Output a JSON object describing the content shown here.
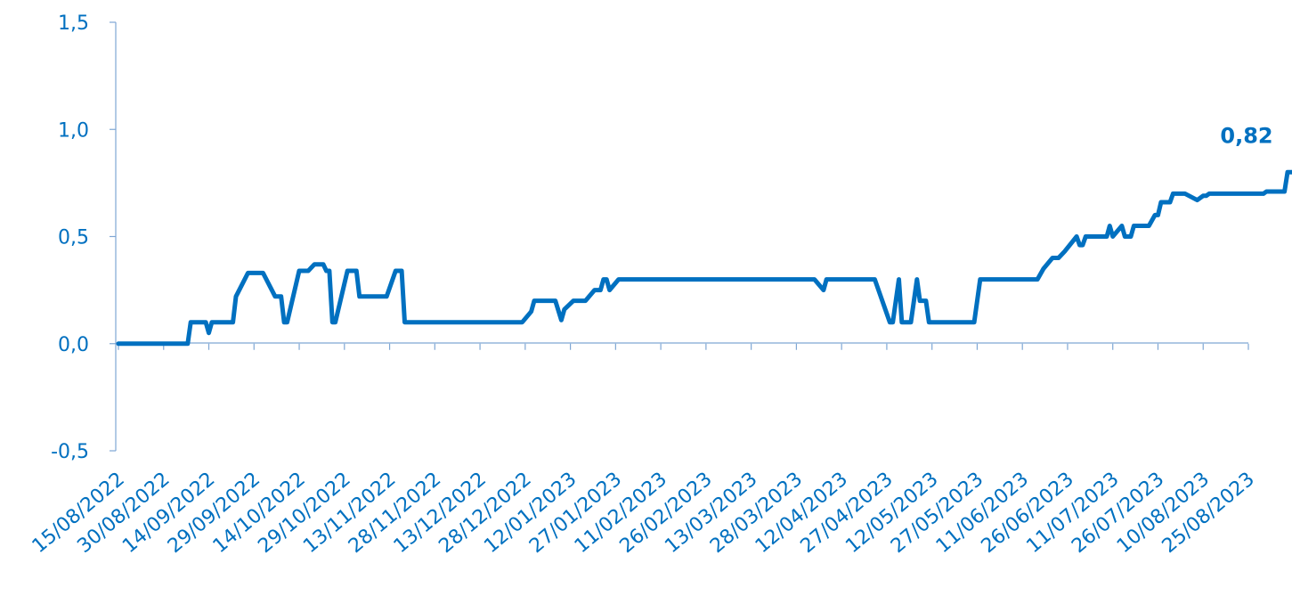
{
  "chart_data": {
    "type": "line",
    "title": "",
    "xlabel": "",
    "ylabel": "",
    "ylim": [
      -0.5,
      1.5
    ],
    "yticks": [
      "-0,5",
      "0,0",
      "0,5",
      "1,0",
      "1,5"
    ],
    "ytick_values": [
      -0.5,
      0.0,
      0.5,
      1.0,
      1.5
    ],
    "xticks": [
      "15/08/2022",
      "30/08/2022",
      "14/09/2022",
      "29/09/2022",
      "14/10/2022",
      "29/10/2022",
      "13/11/2022",
      "28/11/2022",
      "13/12/2022",
      "28/12/2022",
      "12/01/2023",
      "27/01/2023",
      "11/02/2023",
      "26/02/2023",
      "13/03/2023",
      "28/03/2023",
      "12/04/2023",
      "27/04/2023",
      "12/05/2023",
      "27/05/2023",
      "11/06/2023",
      "26/06/2023",
      "11/07/2023",
      "26/07/2023",
      "10/08/2023",
      "25/08/2023"
    ],
    "grid": false,
    "legend": "none",
    "end_label": "0,82",
    "color": "#0070c0",
    "series": [
      {
        "points": [
          [
            "2022-08-15",
            0.0
          ],
          [
            "2022-09-07",
            0.0
          ],
          [
            "2022-09-08",
            0.1
          ],
          [
            "2022-09-13",
            0.1
          ],
          [
            "2022-09-14",
            0.05
          ],
          [
            "2022-09-15",
            0.1
          ],
          [
            "2022-09-22",
            0.1
          ],
          [
            "2022-09-23",
            0.22
          ],
          [
            "2022-09-27",
            0.33
          ],
          [
            "2022-10-02",
            0.33
          ],
          [
            "2022-10-06",
            0.22
          ],
          [
            "2022-10-08",
            0.22
          ],
          [
            "2022-10-09",
            0.1
          ],
          [
            "2022-10-10",
            0.1
          ],
          [
            "2022-10-14",
            0.34
          ],
          [
            "2022-10-17",
            0.34
          ],
          [
            "2022-10-19",
            0.37
          ],
          [
            "2022-10-22",
            0.37
          ],
          [
            "2022-10-23",
            0.34
          ],
          [
            "2022-10-24",
            0.34
          ],
          [
            "2022-10-25",
            0.1
          ],
          [
            "2022-10-26",
            0.1
          ],
          [
            "2022-10-30",
            0.34
          ],
          [
            "2022-11-02",
            0.34
          ],
          [
            "2022-11-03",
            0.22
          ],
          [
            "2022-11-12",
            0.22
          ],
          [
            "2022-11-15",
            0.34
          ],
          [
            "2022-11-17",
            0.34
          ],
          [
            "2022-11-18",
            0.1
          ],
          [
            "2022-12-27",
            0.1
          ],
          [
            "2022-12-30",
            0.15
          ],
          [
            "2022-12-31",
            0.2
          ],
          [
            "2023-01-07",
            0.2
          ],
          [
            "2023-01-09",
            0.11
          ],
          [
            "2023-01-10",
            0.16
          ],
          [
            "2023-01-13",
            0.2
          ],
          [
            "2023-01-17",
            0.2
          ],
          [
            "2023-01-20",
            0.25
          ],
          [
            "2023-01-22",
            0.25
          ],
          [
            "2023-01-23",
            0.3
          ],
          [
            "2023-01-24",
            0.3
          ],
          [
            "2023-01-25",
            0.25
          ],
          [
            "2023-01-28",
            0.3
          ],
          [
            "2023-04-03",
            0.3
          ],
          [
            "2023-04-06",
            0.25
          ],
          [
            "2023-04-07",
            0.3
          ],
          [
            "2023-04-23",
            0.3
          ],
          [
            "2023-04-28",
            0.1
          ],
          [
            "2023-04-29",
            0.1
          ],
          [
            "2023-05-01",
            0.3
          ],
          [
            "2023-05-02",
            0.1
          ],
          [
            "2023-05-05",
            0.1
          ],
          [
            "2023-05-07",
            0.3
          ],
          [
            "2023-05-08",
            0.2
          ],
          [
            "2023-05-10",
            0.2
          ],
          [
            "2023-05-11",
            0.1
          ],
          [
            "2023-05-26",
            0.1
          ],
          [
            "2023-05-28",
            0.3
          ],
          [
            "2023-06-16",
            0.3
          ],
          [
            "2023-06-18",
            0.35
          ],
          [
            "2023-06-21",
            0.4
          ],
          [
            "2023-06-23",
            0.4
          ],
          [
            "2023-06-25",
            0.43
          ],
          [
            "2023-06-29",
            0.5
          ],
          [
            "2023-06-30",
            0.46
          ],
          [
            "2023-07-01",
            0.46
          ],
          [
            "2023-07-02",
            0.5
          ],
          [
            "2023-07-09",
            0.5
          ],
          [
            "2023-07-10",
            0.55
          ],
          [
            "2023-07-11",
            0.5
          ],
          [
            "2023-07-14",
            0.55
          ],
          [
            "2023-07-15",
            0.5
          ],
          [
            "2023-07-17",
            0.5
          ],
          [
            "2023-07-18",
            0.55
          ],
          [
            "2023-07-23",
            0.55
          ],
          [
            "2023-07-25",
            0.6
          ],
          [
            "2023-07-26",
            0.6
          ],
          [
            "2023-07-27",
            0.66
          ],
          [
            "2023-07-30",
            0.66
          ],
          [
            "2023-07-31",
            0.7
          ],
          [
            "2023-08-04",
            0.7
          ],
          [
            "2023-08-08",
            0.67
          ],
          [
            "2023-08-10",
            0.69
          ],
          [
            "2023-08-11",
            0.69
          ],
          [
            "2023-08-12",
            0.7
          ],
          [
            "2023-08-30",
            0.7
          ],
          [
            "2023-08-31",
            0.71
          ],
          [
            "2023-09-06",
            0.71
          ],
          [
            "2023-09-07",
            0.8
          ],
          [
            "2023-09-13",
            0.8
          ],
          [
            "2023-09-14",
            0.81
          ],
          [
            "2023-09-19",
            0.81
          ],
          [
            "2023-09-20",
            0.82
          ],
          [
            "2023-09-21",
            0.82
          ]
        ]
      }
    ]
  }
}
